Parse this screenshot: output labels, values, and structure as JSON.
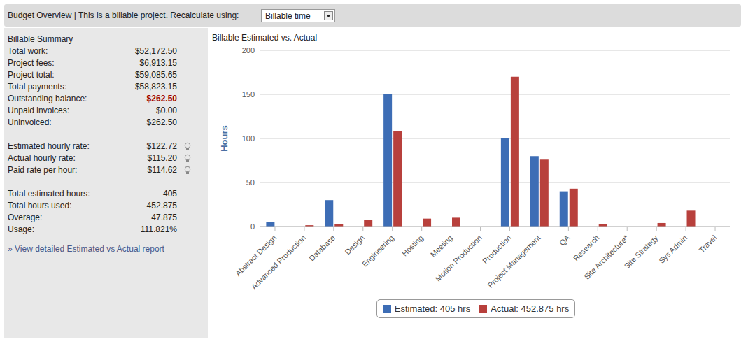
{
  "header": {
    "title": "Budget Overview | This is a billable project. Recalculate using:",
    "select": "Billable time"
  },
  "summary": {
    "title": "Billable Summary",
    "groups": [
      [
        [
          "Total work:",
          "$52,172.50"
        ],
        [
          "Project fees:",
          "$6,913.15"
        ],
        [
          "Project total:",
          "$59,085.65"
        ],
        [
          "Total payments:",
          "$58,823.15"
        ],
        [
          "Outstanding balance:",
          "$262.50"
        ],
        [
          "Unpaid invoices:",
          "$0.00"
        ],
        [
          "Uninvoiced:",
          "$262.50"
        ]
      ],
      [
        [
          "Estimated hourly rate:",
          "$122.72"
        ],
        [
          "Actual hourly rate:",
          "$115.20"
        ],
        [
          "Paid rate per hour:",
          "$114.62"
        ]
      ],
      [
        [
          "Total estimated hours:",
          "405"
        ],
        [
          "Total hours used:",
          "452.875"
        ],
        [
          "Overage:",
          "47.875"
        ],
        [
          "Usage:",
          "111.821%"
        ]
      ]
    ],
    "link": "» View detailed Estimated vs Actual report"
  },
  "chart_data": {
    "type": "bar",
    "title": "Billable Estimated vs. Actual",
    "y_label": "Hours",
    "categories": [
      "Abstract Design",
      "Advanced Production",
      "Database",
      "Design",
      "Engineering",
      "Hosting",
      "Meeting",
      "Motion Production",
      "Production",
      "Project Management",
      "QA",
      "Research",
      "Site Architecture*",
      "Site Strategy",
      "Sys Admin",
      "Travel"
    ],
    "series": [
      {
        "name": "Estimated: 405 hrs",
        "color": "#3d6db5",
        "values": [
          5,
          0,
          30,
          0,
          150,
          0,
          0,
          0,
          100,
          80,
          40,
          0,
          0,
          0,
          0,
          0
        ]
      },
      {
        "name": "Actual: 452.875 hrs",
        "color": "#b8403c",
        "values": [
          0,
          1.5,
          2.5,
          7.5,
          108,
          9,
          10,
          0,
          170,
          76,
          43,
          2.5,
          0,
          4,
          18,
          0
        ]
      }
    ],
    "ylim": [
      0,
      200
    ],
    "yticks": [
      0,
      50,
      100,
      150,
      200
    ],
    "grid": true,
    "legend": "bottom"
  }
}
